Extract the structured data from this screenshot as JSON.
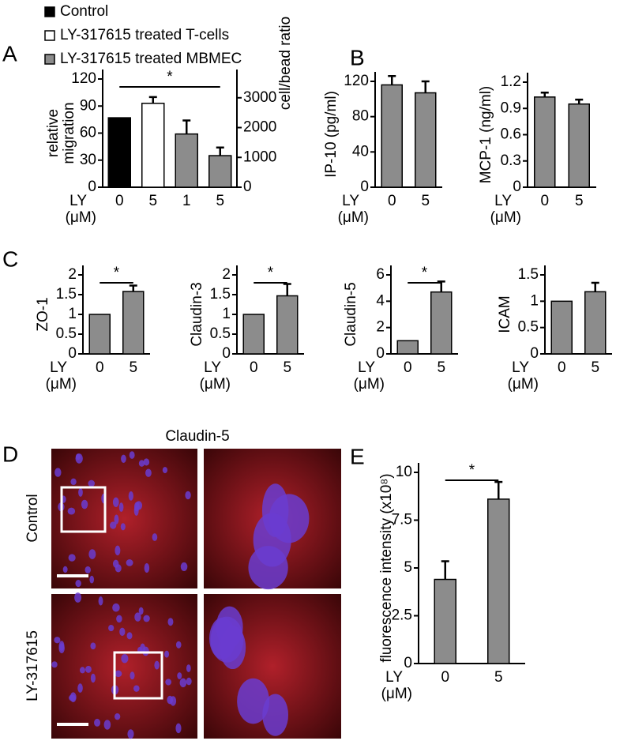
{
  "panel_labels": [
    "A",
    "B",
    "C",
    "D",
    "E"
  ],
  "image_panel": {
    "title": "Claudin-5",
    "rows": [
      "Control",
      "LY-317615"
    ]
  },
  "chart_data": [
    {
      "type": "bar",
      "ylabel": [
        "relative",
        "migration"
      ],
      "y2label": "cell/bead ratio",
      "xlabel": [
        "LY",
        "(μM)"
      ],
      "categories": [
        "0",
        "5",
        "1",
        "5"
      ],
      "values": [
        77,
        93,
        59,
        35
      ],
      "errors": [
        0,
        7,
        15,
        9
      ],
      "colors": [
        "#000000",
        "#ffffff",
        "#8c8c8c",
        "#8c8c8c"
      ],
      "ylim": [
        0,
        120
      ],
      "yticks": [
        0,
        30,
        60,
        90,
        120
      ],
      "y2lim": [
        0,
        3630
      ],
      "y2ticks": [
        0,
        1000,
        2000,
        3000
      ],
      "annotation": "*",
      "legend": [
        {
          "name": "Control",
          "color": "#000000"
        },
        {
          "name": "LY-317615 treated T-cells",
          "color": "#ffffff"
        },
        {
          "name": "LY-317615 treated MBMEC",
          "color": "#8c8c8c"
        }
      ]
    },
    {
      "type": "bar",
      "ylabel": [
        "IP-10 (pg/ml)"
      ],
      "xlabel": [
        "LY",
        "(μM)"
      ],
      "categories": [
        "0",
        "5"
      ],
      "values": [
        116,
        107
      ],
      "errors": [
        10,
        13
      ],
      "color": "#8c8c8c",
      "ylim": [
        0,
        120
      ],
      "yticks": [
        0,
        40,
        80,
        120
      ]
    },
    {
      "type": "bar",
      "ylabel": [
        "MCP-1 (ng/ml)"
      ],
      "xlabel": [
        "LY",
        "(μM)"
      ],
      "categories": [
        "0",
        "5"
      ],
      "values": [
        1.03,
        0.95
      ],
      "errors": [
        0.05,
        0.05
      ],
      "color": "#8c8c8c",
      "ylim": [
        0,
        1.2
      ],
      "yticks": [
        0,
        0.3,
        0.6,
        0.9,
        1.2
      ]
    },
    {
      "type": "bar",
      "ylabel": [
        "ZO-1"
      ],
      "xlabel": [
        "LY",
        "(μM)"
      ],
      "categories": [
        "0",
        "5"
      ],
      "values": [
        1,
        1.58
      ],
      "errors": [
        0,
        0.15
      ],
      "color": "#8c8c8c",
      "ylim": [
        0,
        2
      ],
      "yticks": [
        0,
        0.5,
        1,
        1.5,
        2
      ],
      "annotation": "*"
    },
    {
      "type": "bar",
      "ylabel": [
        "Claudin-3"
      ],
      "xlabel": [
        "LY",
        "(μM)"
      ],
      "categories": [
        "0",
        "5"
      ],
      "values": [
        1,
        1.47
      ],
      "errors": [
        0,
        0.3
      ],
      "color": "#8c8c8c",
      "ylim": [
        0,
        2
      ],
      "yticks": [
        0,
        0.5,
        1,
        1.5,
        2
      ],
      "annotation": "*"
    },
    {
      "type": "bar",
      "ylabel": [
        "Claudin-5"
      ],
      "xlabel": [
        "LY",
        "(μM)"
      ],
      "categories": [
        "0",
        "5"
      ],
      "values": [
        1,
        4.7
      ],
      "errors": [
        0,
        0.8
      ],
      "color": "#8c8c8c",
      "ylim": [
        0,
        6
      ],
      "yticks": [
        0,
        2,
        4,
        6
      ],
      "annotation": "*"
    },
    {
      "type": "bar",
      "ylabel": [
        "ICAM"
      ],
      "xlabel": [
        "LY",
        "(μM)"
      ],
      "categories": [
        "0",
        "5"
      ],
      "values": [
        1,
        1.18
      ],
      "errors": [
        0,
        0.17
      ],
      "color": "#8c8c8c",
      "ylim": [
        0,
        1.5
      ],
      "yticks": [
        0,
        0.5,
        1,
        1.5
      ]
    },
    {
      "type": "bar",
      "ylabel": [
        "fluorescence intensity (x10⁸)"
      ],
      "xlabel": [
        "LY",
        "(μM)"
      ],
      "categories": [
        "0",
        "5"
      ],
      "values": [
        4.4,
        8.6
      ],
      "errors": [
        0.95,
        0.9
      ],
      "color": "#8c8c8c",
      "ylim": [
        0,
        10
      ],
      "yticks": [
        0,
        2.5,
        5,
        7.5,
        10
      ],
      "annotation": "*"
    }
  ]
}
